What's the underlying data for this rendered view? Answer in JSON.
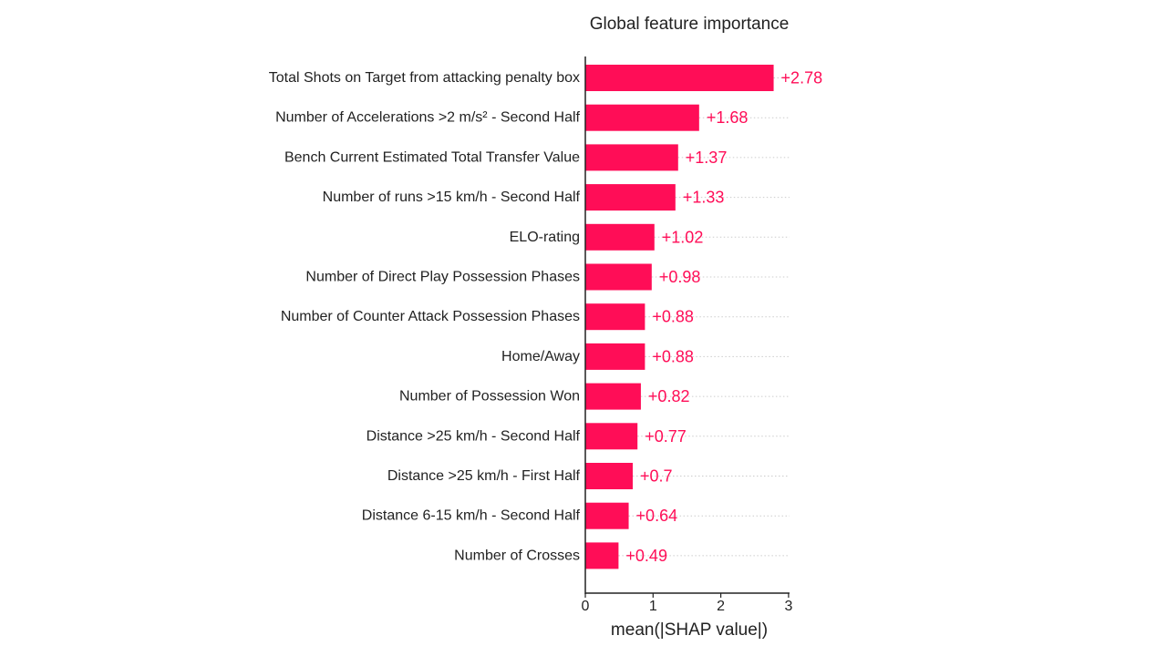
{
  "chart_data": {
    "type": "bar",
    "orientation": "horizontal",
    "title": "Global feature importance",
    "xlabel": "mean(|SHAP value|)",
    "ylabel": "",
    "xlim": [
      0,
      3
    ],
    "xticks": [
      "0",
      "1",
      "2",
      "3"
    ],
    "grid": false,
    "bar_color": "#ff0d57",
    "categories": [
      "Total Shots on Target from attacking penalty box",
      "Number of Accelerations >2 m/s² - Second Half",
      "Bench Current Estimated Total Transfer Value",
      "Number of runs >15 km/h - Second Half",
      "ELO-rating",
      "Number of Direct Play Possession Phases",
      "Number of Counter Attack Possession Phases",
      "Home/Away",
      "Number of Possession Won",
      "Distance >25 km/h - Second Half",
      "Distance >25 km/h - First Half",
      "Distance 6-15 km/h - Second Half",
      "Number of Crosses"
    ],
    "values": [
      2.78,
      1.68,
      1.37,
      1.33,
      1.02,
      0.98,
      0.88,
      0.88,
      0.82,
      0.77,
      0.7,
      0.64,
      0.49
    ],
    "value_labels": [
      "+2.78",
      "+1.68",
      "+1.37",
      "+1.33",
      "+1.02",
      "+0.98",
      "+0.88",
      "+0.88",
      "+0.82",
      "+0.77",
      "+0.7",
      "+0.64",
      "+0.49"
    ]
  }
}
